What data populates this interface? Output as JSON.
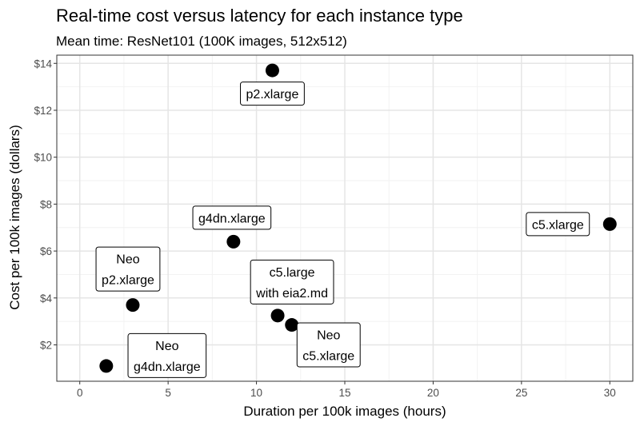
{
  "chart_data": {
    "type": "scatter",
    "title": "Real-time cost versus latency for each instance type",
    "subtitle": "Mean time: ResNet101 (100K images, 512x512)",
    "xlabel": "Duration per 100k images (hours)",
    "ylabel": "Cost per 100k images (dollars)",
    "xlim": [
      -1.3,
      31.3
    ],
    "ylim": [
      0.45,
      14.35
    ],
    "x_ticks": [
      0,
      5,
      10,
      15,
      20,
      25,
      30
    ],
    "x_tick_labels": [
      "0",
      "5",
      "10",
      "15",
      "20",
      "25",
      "30"
    ],
    "y_ticks": [
      2,
      4,
      6,
      8,
      10,
      12,
      14
    ],
    "y_tick_labels": [
      "$2",
      "$4",
      "$6",
      "$8",
      "$10",
      "$12",
      "$14"
    ],
    "grid": true,
    "points": [
      {
        "x": 10.9,
        "y": 13.7,
        "label": [
          "p2.xlarge"
        ]
      },
      {
        "x": 30.0,
        "y": 7.15,
        "label": [
          "c5.xlarge"
        ]
      },
      {
        "x": 8.7,
        "y": 6.4,
        "label": [
          "g4dn.xlarge"
        ]
      },
      {
        "x": 3.0,
        "y": 3.7,
        "label": [
          "Neo",
          "p2.xlarge"
        ]
      },
      {
        "x": 11.2,
        "y": 3.25,
        "label": [
          "c5.large",
          "with eia2.md"
        ]
      },
      {
        "x": 12.0,
        "y": 2.85,
        "label": [
          "Neo",
          "c5.xlarge"
        ]
      },
      {
        "x": 1.5,
        "y": 1.1,
        "label": [
          "Neo",
          "g4dn.xlarge"
        ]
      }
    ]
  }
}
